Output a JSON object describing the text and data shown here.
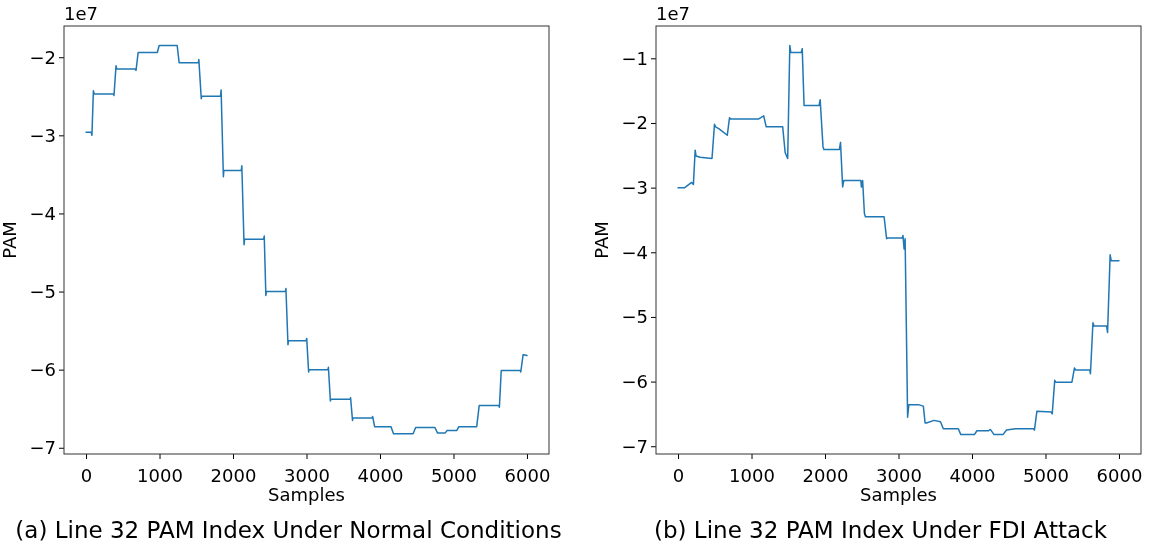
{
  "chart_data": [
    {
      "type": "line",
      "title": "(a) Line 32 PAM Index Under Normal Conditions",
      "xlabel": "Samples",
      "ylabel": "PAM",
      "annotations": [
        "1e7"
      ],
      "xlim": [
        -300,
        6300
      ],
      "ylim": [
        -7.08,
        -1.6
      ],
      "xticks": [
        0,
        1000,
        2000,
        3000,
        4000,
        5000,
        6000
      ],
      "yticks": [
        {
          "value": -7,
          "label": "−7"
        },
        {
          "value": -6,
          "label": "−6"
        },
        {
          "value": -5,
          "label": "−5"
        },
        {
          "value": -4,
          "label": "−4"
        },
        {
          "value": -3,
          "label": "−3"
        },
        {
          "value": -2,
          "label": "−2"
        }
      ],
      "grid": false,
      "series": [
        {
          "color": "#1f77b4",
          "x": [
            0,
            70,
            80,
            100,
            110,
            374,
            380,
            408,
            418,
            670,
            680,
            709,
            720,
            961,
            970,
            995,
            1005,
            1233,
            1240,
            1267,
            1277,
            1529,
            1535,
            1568,
            1575,
            1830,
            1838,
            1869,
            1875,
            2112,
            2120,
            2150,
            2158,
            2417,
            2425,
            2447,
            2455,
            2714,
            2720,
            2748,
            2755,
            2995,
            3003,
            3029,
            3035,
            3291,
            3298,
            3325,
            3332,
            3592,
            3600,
            3626,
            3632,
            3893,
            3900,
            3927,
            4150,
            4184,
            4451,
            4485,
            4748,
            4782,
            4888,
            4913,
            5044,
            5073,
            5316,
            5350,
            5358,
            5617,
            5625,
            5650,
            5658,
            5908,
            5916,
            5947,
            5955,
            6000
          ],
          "values": [
            -2.96,
            -2.96,
            -3.0,
            -2.43,
            -2.47,
            -2.47,
            -2.49,
            -2.11,
            -2.15,
            -2.15,
            -2.17,
            -1.94,
            -1.94,
            -1.94,
            -1.94,
            -1.85,
            -1.85,
            -1.85,
            -1.85,
            -2.07,
            -2.07,
            -2.07,
            -2.03,
            -2.53,
            -2.5,
            -2.5,
            -2.42,
            -3.53,
            -3.45,
            -3.45,
            -3.39,
            -4.4,
            -4.33,
            -4.33,
            -4.29,
            -5.05,
            -5.0,
            -5.0,
            -4.96,
            -5.68,
            -5.63,
            -5.63,
            -5.6,
            -6.03,
            -6.0,
            -6.0,
            -5.97,
            -6.4,
            -6.38,
            -6.38,
            -6.36,
            -6.65,
            -6.62,
            -6.62,
            -6.6,
            -6.73,
            -6.73,
            -6.82,
            -6.82,
            -6.74,
            -6.74,
            -6.81,
            -6.81,
            -6.78,
            -6.78,
            -6.73,
            -6.73,
            -6.46,
            -6.46,
            -6.46,
            -6.48,
            -6.01,
            -6.01,
            -6.01,
            -6.03,
            -5.81,
            -5.81,
            -5.82
          ]
        }
      ]
    },
    {
      "type": "line",
      "title": "(b) Line 32 PAM Index Under FDI Attack",
      "xlabel": "Samples",
      "ylabel": "PAM",
      "annotations": [
        "1e7"
      ],
      "xlim": [
        -300,
        6300
      ],
      "ylim": [
        -7.12,
        -0.5
      ],
      "xticks": [
        0,
        1000,
        2000,
        3000,
        4000,
        5000,
        6000
      ],
      "yticks": [
        {
          "value": -7,
          "label": "−7"
        },
        {
          "value": -6,
          "label": "−6"
        },
        {
          "value": -5,
          "label": "−5"
        },
        {
          "value": -4,
          "label": "−4"
        },
        {
          "value": -3,
          "label": "−3"
        },
        {
          "value": -2,
          "label": "−2"
        },
        {
          "value": -1,
          "label": "−1"
        }
      ],
      "grid": false,
      "series": [
        {
          "color": "#1f77b4",
          "x": [
            0,
            90,
            185,
            209,
            233,
            245,
            300,
            462,
            496,
            510,
            559,
            670,
            700,
            720,
            1093,
            1166,
            1200,
            1210,
            1424,
            1458,
            1492,
            1521,
            1535,
            1676,
            1690,
            1715,
            1730,
            1919,
            1934,
            1973,
            1985,
            2196,
            2211,
            2240,
            2255,
            2488,
            2495,
            2512,
            2536,
            2550,
            2804,
            2838,
            2850,
            3050,
            3061,
            3076,
            3090,
            3124,
            3140,
            3280,
            3338,
            3362,
            3380,
            3484,
            3571,
            3610,
            3814,
            3848,
            4033,
            4067,
            4227,
            4250,
            4300,
            4422,
            4470,
            4592,
            4835,
            4850,
            4883,
            5078,
            5092,
            5126,
            5140,
            5360,
            5394,
            5410,
            5603,
            5612,
            5646,
            5660,
            5831,
            5845,
            5880,
            5895,
            6000
          ],
          "values": [
            -3.0,
            -3.0,
            -2.92,
            -2.95,
            -2.42,
            -2.51,
            -2.53,
            -2.55,
            -2.02,
            -2.06,
            -2.09,
            -2.19,
            -1.92,
            -1.94,
            -1.94,
            -1.89,
            -2.06,
            -2.06,
            -2.06,
            -2.46,
            -2.55,
            -0.8,
            -0.91,
            -0.91,
            -0.85,
            -1.73,
            -1.73,
            -1.73,
            -1.64,
            -2.37,
            -2.41,
            -2.41,
            -2.3,
            -2.99,
            -2.89,
            -2.89,
            -2.99,
            -2.89,
            -3.4,
            -3.45,
            -3.45,
            -3.79,
            -3.78,
            -3.78,
            -3.74,
            -3.95,
            -3.79,
            -6.55,
            -6.36,
            -6.36,
            -6.38,
            -6.64,
            -6.64,
            -6.6,
            -6.62,
            -6.73,
            -6.73,
            -6.82,
            -6.82,
            -6.76,
            -6.76,
            -6.74,
            -6.82,
            -6.82,
            -6.75,
            -6.73,
            -6.73,
            -6.75,
            -6.46,
            -6.47,
            -6.5,
            -5.98,
            -6.01,
            -6.01,
            -5.79,
            -5.82,
            -5.82,
            -5.88,
            -5.09,
            -5.14,
            -5.14,
            -5.24,
            -4.04,
            -4.13,
            -4.13
          ]
        }
      ]
    }
  ]
}
